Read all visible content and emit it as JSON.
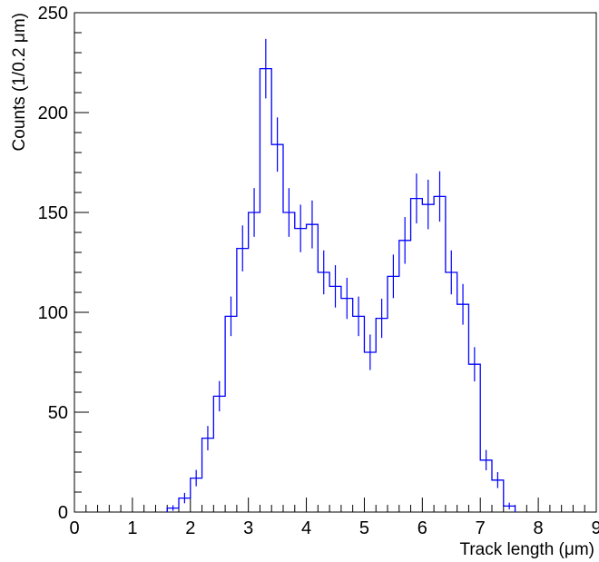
{
  "chart_data": {
    "type": "histogram",
    "title": "",
    "xlabel": "Track length (μm)",
    "ylabel": "Counts (1/0.2 μm)",
    "xlim": [
      0,
      9
    ],
    "ylim": [
      0,
      250
    ],
    "x_ticks": [
      "0",
      "1",
      "2",
      "3",
      "4",
      "5",
      "6",
      "7",
      "8",
      "9"
    ],
    "y_ticks": [
      "0",
      "50",
      "100",
      "150",
      "200",
      "250"
    ],
    "bin_width": 0.2,
    "bin_low_edges": [
      1.6,
      1.8,
      2.0,
      2.2,
      2.4,
      2.6,
      2.8,
      3.0,
      3.2,
      3.4,
      3.6,
      3.8,
      4.0,
      4.2,
      4.4,
      4.6,
      4.8,
      5.0,
      5.2,
      5.4,
      5.6,
      5.8,
      6.0,
      6.2,
      6.4,
      6.6,
      6.8,
      7.0,
      7.2,
      7.4
    ],
    "values": [
      2,
      7,
      17,
      37,
      58,
      98,
      132,
      150,
      222,
      184,
      150,
      142,
      144,
      120,
      113,
      107,
      98,
      80,
      97,
      118,
      136,
      157,
      154,
      158,
      120,
      104,
      74,
      26,
      16,
      3
    ],
    "errors": [
      1.4,
      2.6,
      4.1,
      6.1,
      7.6,
      9.9,
      11.5,
      12.2,
      14.9,
      13.6,
      12.2,
      11.9,
      12.0,
      11.0,
      10.6,
      10.3,
      9.9,
      8.9,
      9.8,
      10.9,
      11.7,
      12.5,
      12.4,
      12.6,
      11.0,
      10.2,
      8.6,
      5.1,
      4.0,
      1.7
    ],
    "color": "#0000ff",
    "grid": false
  }
}
